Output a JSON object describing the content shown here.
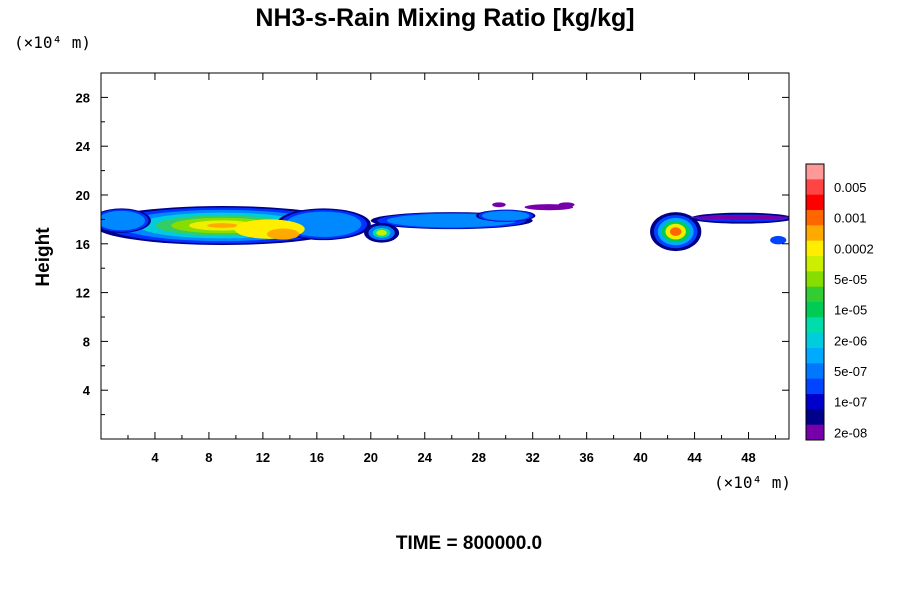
{
  "chart_data": {
    "type": "filled-contour",
    "title": "NH3-s-Rain Mixing Ratio [kg/kg]",
    "ylabel": "Height",
    "y_unit_label": "(×10⁴ m)",
    "x_unit_label": "(×10⁴ m)",
    "x_ticks": [
      4,
      8,
      12,
      16,
      20,
      24,
      28,
      32,
      36,
      40,
      44,
      48
    ],
    "y_ticks": [
      4,
      8,
      12,
      16,
      20,
      24,
      28
    ],
    "xlim": [
      0,
      51
    ],
    "ylim": [
      0,
      30
    ],
    "colorbar_labels": [
      "0.005",
      "0.001",
      "0.0002",
      "5e-05",
      "1e-05",
      "2e-06",
      "5e-07",
      "1e-07",
      "2e-08"
    ],
    "colorbar_colors": [
      "#ff9999",
      "#ff4444",
      "#ff0000",
      "#ff6600",
      "#ffaa00",
      "#ffee00",
      "#ccee00",
      "#88dd00",
      "#33cc33",
      "#00cc55",
      "#00ddaa",
      "#00ccdd",
      "#00aaff",
      "#0077ff",
      "#0044ff",
      "#0000cc",
      "#000088",
      "#7700aa"
    ],
    "regions": [
      {
        "name": "main-band",
        "x": [
          0,
          33
        ],
        "y": [
          15.5,
          19
        ]
      },
      {
        "name": "cell-20",
        "x": [
          19.5,
          22
        ],
        "y": [
          16,
          18
        ]
      },
      {
        "name": "thin-tail",
        "x": [
          31,
          35
        ],
        "y": [
          18.5,
          19.5
        ]
      },
      {
        "name": "east-cell",
        "x": [
          40.5,
          44.5
        ],
        "y": [
          15.5,
          19
        ]
      },
      {
        "name": "east-band",
        "x": [
          44,
          51
        ],
        "y": [
          16,
          19
        ]
      }
    ],
    "time_label": "TIME = 800000.0"
  }
}
